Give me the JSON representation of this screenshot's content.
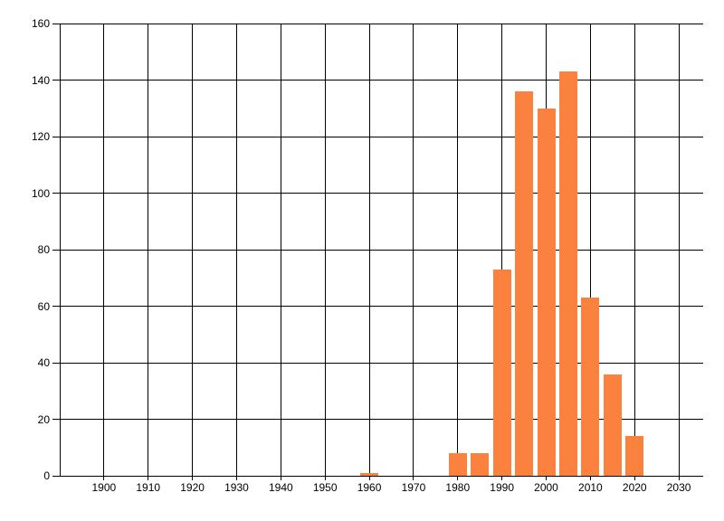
{
  "chart_data": {
    "type": "bar",
    "title": "",
    "xlabel": "",
    "ylabel": "",
    "x": [
      1960,
      1980,
      1985,
      1990,
      1995,
      2000,
      2005,
      2010,
      2015,
      2020
    ],
    "values": [
      1,
      8,
      8,
      73,
      136,
      130,
      143,
      63,
      36,
      14
    ],
    "x_ticks": [
      "1900",
      "1910",
      "1920",
      "1930",
      "1940",
      "1950",
      "1960",
      "1970",
      "1980",
      "1990",
      "2000",
      "2010",
      "2020",
      "2030"
    ],
    "y_ticks": [
      "0",
      "20",
      "40",
      "60",
      "80",
      "100",
      "120",
      "140",
      "160"
    ],
    "xlim": [
      1890,
      2035.5
    ],
    "ylim": [
      0,
      160
    ],
    "grid": true,
    "legend_position": "none",
    "bar_width_years": 4.1,
    "bar_color": "#FB823E",
    "grid_color": "#000000",
    "axis_color": "#000000",
    "text_color": "#000000",
    "background_color": "#FFFFFF"
  }
}
